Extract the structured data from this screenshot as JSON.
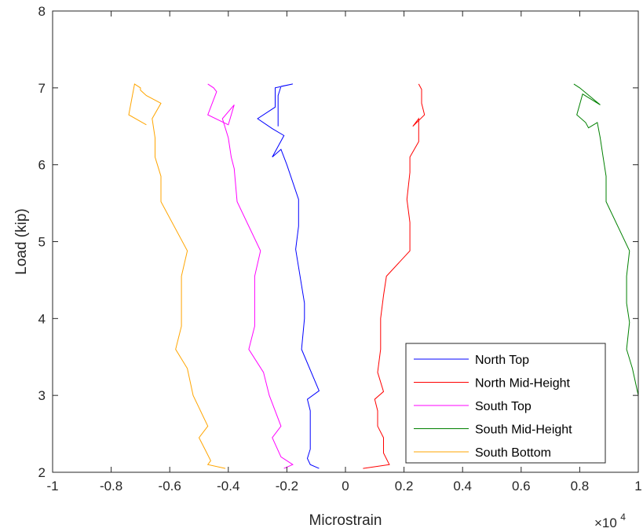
{
  "chart_data": {
    "type": "line",
    "xlabel": "Microstrain",
    "ylabel": "Load (kip)",
    "x_multiplier": {
      "base": "×10",
      "exponent": "4"
    },
    "xlim": [
      -1,
      1
    ],
    "ylim": [
      2,
      8
    ],
    "xticks": [
      "-1",
      "-0.8",
      "-0.6",
      "-0.4",
      "-0.2",
      "0",
      "0.2",
      "0.4",
      "0.6",
      "0.8",
      "1"
    ],
    "yticks": [
      "2",
      "3",
      "4",
      "5",
      "6",
      "7",
      "8"
    ],
    "grid": false,
    "legend_position": "bottom-right",
    "series": [
      {
        "name": "North Top",
        "color": "#0000ff",
        "points": [
          [
            -0.09,
            2.05
          ],
          [
            -0.12,
            2.1
          ],
          [
            -0.13,
            2.18
          ],
          [
            -0.12,
            2.3
          ],
          [
            -0.12,
            2.5
          ],
          [
            -0.12,
            2.8
          ],
          [
            -0.13,
            2.95
          ],
          [
            -0.09,
            3.06
          ],
          [
            -0.15,
            3.6
          ],
          [
            -0.14,
            4.0
          ],
          [
            -0.14,
            4.2
          ],
          [
            -0.17,
            4.9
          ],
          [
            -0.16,
            5.2
          ],
          [
            -0.16,
            5.55
          ],
          [
            -0.2,
            6.0
          ],
          [
            -0.22,
            6.2
          ],
          [
            -0.25,
            6.1
          ],
          [
            -0.21,
            6.38
          ],
          [
            -0.25,
            6.47
          ],
          [
            -0.3,
            6.6
          ],
          [
            -0.24,
            6.75
          ],
          [
            -0.24,
            7.0
          ],
          [
            -0.18,
            7.05
          ],
          [
            -0.22,
            7.02
          ],
          [
            -0.23,
            6.9
          ],
          [
            -0.23,
            6.5
          ]
        ]
      },
      {
        "name": "North Mid-Height",
        "color": "#ff0000",
        "points": [
          [
            0.06,
            2.05
          ],
          [
            0.15,
            2.1
          ],
          [
            0.13,
            2.25
          ],
          [
            0.13,
            2.45
          ],
          [
            0.11,
            2.6
          ],
          [
            0.11,
            2.8
          ],
          [
            0.1,
            2.95
          ],
          [
            0.13,
            3.05
          ],
          [
            0.11,
            3.3
          ],
          [
            0.12,
            3.6
          ],
          [
            0.12,
            4.0
          ],
          [
            0.13,
            4.3
          ],
          [
            0.14,
            4.55
          ],
          [
            0.22,
            4.88
          ],
          [
            0.22,
            5.25
          ],
          [
            0.21,
            5.55
          ],
          [
            0.22,
            5.9
          ],
          [
            0.22,
            6.1
          ],
          [
            0.25,
            6.3
          ],
          [
            0.25,
            6.6
          ],
          [
            0.23,
            6.5
          ],
          [
            0.27,
            6.65
          ],
          [
            0.26,
            6.8
          ],
          [
            0.26,
            6.98
          ],
          [
            0.25,
            7.05
          ]
        ]
      },
      {
        "name": "South Top",
        "color": "#ff00ff",
        "points": [
          [
            -0.21,
            2.05
          ],
          [
            -0.18,
            2.1
          ],
          [
            -0.22,
            2.2
          ],
          [
            -0.25,
            2.45
          ],
          [
            -0.22,
            2.6
          ],
          [
            -0.26,
            3.0
          ],
          [
            -0.28,
            3.3
          ],
          [
            -0.33,
            3.6
          ],
          [
            -0.31,
            3.9
          ],
          [
            -0.31,
            4.2
          ],
          [
            -0.31,
            4.55
          ],
          [
            -0.29,
            4.88
          ],
          [
            -0.37,
            5.52
          ],
          [
            -0.38,
            5.95
          ],
          [
            -0.39,
            6.1
          ],
          [
            -0.4,
            6.35
          ],
          [
            -0.42,
            6.6
          ],
          [
            -0.38,
            6.78
          ],
          [
            -0.4,
            6.52
          ],
          [
            -0.47,
            6.65
          ],
          [
            -0.44,
            6.95
          ],
          [
            -0.45,
            7.0
          ],
          [
            -0.47,
            7.05
          ]
        ]
      },
      {
        "name": "South Mid-Height",
        "color": "#008000",
        "points": [
          [
            1.0,
            2.45
          ],
          [
            1.0,
            3.0
          ],
          [
            0.98,
            3.35
          ],
          [
            0.96,
            3.6
          ],
          [
            0.97,
            3.95
          ],
          [
            0.96,
            4.2
          ],
          [
            0.96,
            4.55
          ],
          [
            0.97,
            4.88
          ],
          [
            0.89,
            5.52
          ],
          [
            0.89,
            5.85
          ],
          [
            0.88,
            6.1
          ],
          [
            0.87,
            6.35
          ],
          [
            0.86,
            6.55
          ],
          [
            0.83,
            6.48
          ],
          [
            0.82,
            6.55
          ],
          [
            0.79,
            6.65
          ],
          [
            0.81,
            6.92
          ],
          [
            0.87,
            6.78
          ],
          [
            0.8,
            7.0
          ],
          [
            0.78,
            7.05
          ]
        ]
      },
      {
        "name": "South Bottom",
        "color": "#ffa500",
        "points": [
          [
            -0.41,
            2.05
          ],
          [
            -0.47,
            2.1
          ],
          [
            -0.46,
            2.15
          ],
          [
            -0.48,
            2.3
          ],
          [
            -0.5,
            2.45
          ],
          [
            -0.47,
            2.6
          ],
          [
            -0.52,
            3.0
          ],
          [
            -0.54,
            3.35
          ],
          [
            -0.58,
            3.6
          ],
          [
            -0.56,
            3.9
          ],
          [
            -0.56,
            4.2
          ],
          [
            -0.56,
            4.55
          ],
          [
            -0.54,
            4.88
          ],
          [
            -0.63,
            5.52
          ],
          [
            -0.63,
            5.85
          ],
          [
            -0.65,
            6.1
          ],
          [
            -0.65,
            6.35
          ],
          [
            -0.66,
            6.6
          ],
          [
            -0.63,
            6.8
          ],
          [
            -0.68,
            6.9
          ],
          [
            -0.7,
            6.97
          ],
          [
            -0.7,
            7.0
          ],
          [
            -0.72,
            7.05
          ],
          [
            -0.74,
            6.65
          ],
          [
            -0.68,
            6.52
          ]
        ]
      }
    ]
  }
}
